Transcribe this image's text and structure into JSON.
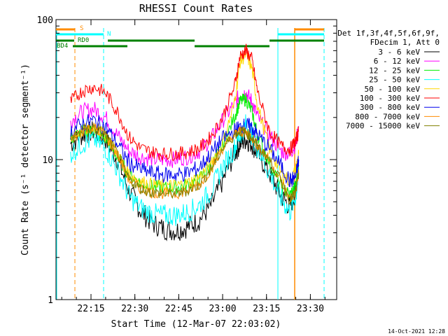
{
  "chart_data": {
    "type": "line",
    "title": "RHESSI Count Rates",
    "xlabel": "Start Time (12-Mar-07 22:03:02)",
    "ylabel": "Count Rate (s⁻¹ detector segment⁻¹)",
    "y_scale": "log",
    "ylim": [
      1,
      100
    ],
    "xlim": [
      "22:03:02",
      "23:39:00"
    ],
    "x_tick_labels": [
      "22:15",
      "22:30",
      "22:45",
      "23:00",
      "23:15",
      "23:30"
    ],
    "y_tick_labels": [
      "1",
      "10",
      "100"
    ],
    "legend_header": [
      "Det 1f,3f,4f,5f,6f,9f,",
      "FDecim 1, Att 0"
    ],
    "legend_position": "right",
    "footer_date": "14-Oct-2021 12:28",
    "x": [
      "22:08",
      "22:12",
      "22:16",
      "22:20",
      "22:24",
      "22:28",
      "22:32",
      "22:36",
      "22:40",
      "22:44",
      "22:48",
      "22:52",
      "22:56",
      "23:00",
      "23:04",
      "23:06",
      "23:08",
      "23:10",
      "23:12",
      "23:16",
      "23:20",
      "23:23",
      "23:25",
      "23:26"
    ],
    "series": [
      {
        "name": "3 - 6 keV",
        "color": "#000000",
        "values": [
          13,
          15,
          16,
          14,
          10,
          6,
          4.3,
          3.5,
          3.2,
          3.1,
          3.3,
          3.7,
          4.7,
          7,
          11,
          13,
          14,
          13,
          11,
          8,
          5.5,
          4.6,
          6,
          9
        ]
      },
      {
        "name": "6 - 12 keV",
        "color": "#ff00ff",
        "values": [
          19,
          22,
          23,
          20,
          15,
          11.5,
          10.5,
          10,
          10,
          10,
          10.5,
          11.5,
          14,
          19,
          25,
          29,
          30,
          26,
          20,
          15,
          11.5,
          11,
          13,
          17
        ]
      },
      {
        "name": "12 - 25 keV",
        "color": "#00ee00",
        "values": [
          14,
          16,
          16,
          14,
          10.5,
          7.8,
          6.8,
          6.4,
          6.3,
          6.3,
          6.6,
          7.3,
          9,
          12.5,
          20,
          26,
          27,
          22,
          15,
          9.5,
          6.4,
          5.6,
          6.5,
          8.5
        ]
      },
      {
        "name": "25 - 50 keV",
        "color": "#00ffff",
        "values": [
          11,
          13,
          14,
          12,
          8.5,
          5.5,
          4.5,
          4.1,
          4,
          4,
          4.2,
          4.7,
          6,
          8.8,
          12,
          15,
          18,
          15,
          12,
          8,
          5.3,
          4.2,
          5.5,
          8
        ]
      },
      {
        "name": "50 - 100 keV",
        "color": "#ffd800",
        "values": [
          14,
          16,
          17,
          15,
          11,
          8,
          7,
          6.6,
          6.5,
          6.5,
          6.8,
          7.5,
          9.5,
          13,
          25,
          50,
          57,
          45,
          24,
          12,
          8,
          7,
          8.5,
          11
        ]
      },
      {
        "name": "100 - 300 keV",
        "color": "#ff0000",
        "values": [
          26,
          31,
          33,
          30,
          22,
          14.5,
          12,
          11.3,
          11,
          11,
          11.3,
          12,
          14.5,
          20,
          33,
          55,
          60,
          52,
          30,
          16,
          12.5,
          11.8,
          13.5,
          16
        ]
      },
      {
        "name": "300 - 800 keV",
        "color": "#0000ee",
        "values": [
          16,
          18,
          19,
          17,
          13,
          9.5,
          8.5,
          8,
          7.8,
          7.8,
          8,
          8.8,
          11,
          14,
          16,
          17,
          17.5,
          17,
          15,
          12,
          9,
          7,
          7.5,
          10
        ]
      },
      {
        "name": "800 - 7000 keV",
        "color": "#ff8c00",
        "values": [
          14,
          16,
          17,
          15,
          11,
          7.2,
          6.2,
          5.8,
          5.7,
          5.7,
          6,
          6.6,
          8.5,
          12,
          15,
          16,
          15.5,
          14.5,
          12.5,
          10,
          7,
          5.2,
          5.8,
          8
        ]
      },
      {
        "name": "7000 - 15000 keV",
        "color": "#808000",
        "values": [
          14,
          16,
          17,
          15,
          11,
          7.2,
          6.2,
          5.8,
          5.7,
          5.7,
          6,
          6.6,
          8.5,
          12,
          15,
          16,
          15.5,
          14.5,
          12.5,
          10,
          7,
          5.2,
          5.8,
          8
        ]
      }
    ],
    "attenuator_bars": {
      "S": {
        "label": "S",
        "color": "#ff8c00"
      },
      "N": {
        "label": "N",
        "color": "#00ffff"
      },
      "RD0": {
        "label": "RD0",
        "color": "#008000"
      },
      "BD4": {
        "label": "BD4",
        "color": "#008000"
      }
    }
  }
}
